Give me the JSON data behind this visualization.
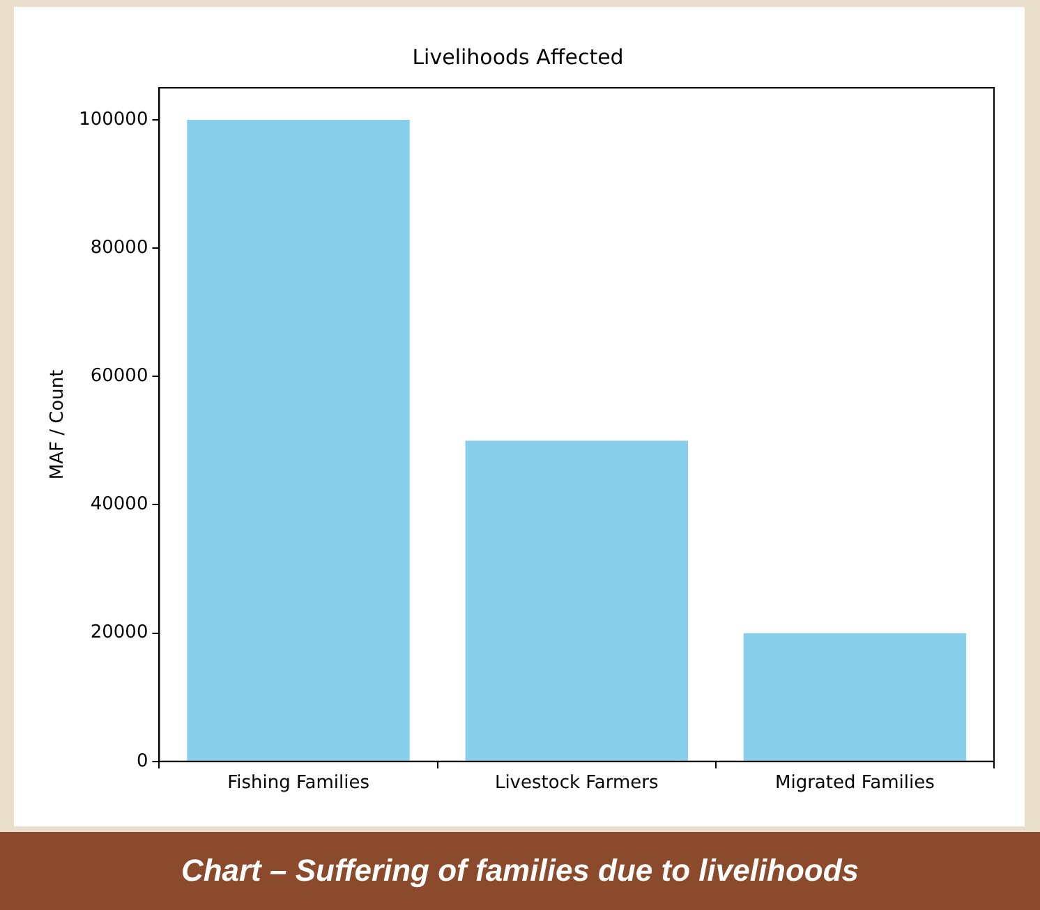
{
  "chart_data": {
    "type": "bar",
    "title": "Livelihoods Affected",
    "ylabel": "MAF / Count",
    "categories": [
      "Fishing Families",
      "Livestock Farmers",
      "Migrated Families"
    ],
    "values": [
      100000,
      50000,
      20000
    ],
    "color": "#87ceeb",
    "ylim": [
      0,
      105000
    ],
    "yticks": [
      0,
      20000,
      40000,
      60000,
      80000,
      100000
    ],
    "grid": false,
    "legend": false,
    "annotations": [
      "Chart – Suffering of families due to livelihoods"
    ]
  }
}
